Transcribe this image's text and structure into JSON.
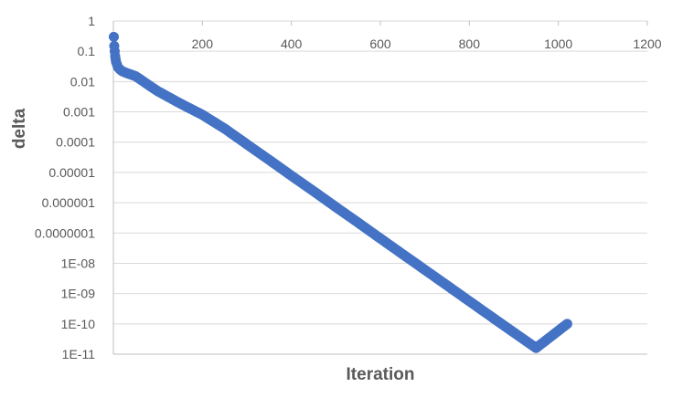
{
  "chart_data": {
    "type": "scatter",
    "title": "",
    "xlabel": "Iteration",
    "ylabel": "delta",
    "x_ticks": [
      "200",
      "400",
      "600",
      "800",
      "1000",
      "1200"
    ],
    "x_tick_values": [
      200,
      400,
      600,
      800,
      1000,
      1200
    ],
    "xlim": [
      0,
      1200
    ],
    "y_scale": "log",
    "ylim": [
      1e-11,
      1
    ],
    "y_ticks": [
      "1",
      "0.1",
      "0.01",
      "0.001",
      "0.0001",
      "0.00001",
      "0.000001",
      "0.0000001",
      "1E-08",
      "1E-09",
      "1E-10",
      "1E-11"
    ],
    "y_tick_values": [
      1,
      0.1,
      0.01,
      0.001,
      0.0001,
      1e-05,
      1e-06,
      1e-07,
      1e-08,
      1e-09,
      1e-10,
      1e-11
    ],
    "grid": true,
    "legend": "none",
    "series": [
      {
        "color": "#4472c4",
        "points": [
          [
            1,
            0.3
          ],
          [
            2,
            0.15
          ],
          [
            3,
            0.1
          ],
          [
            4,
            0.07
          ],
          [
            5,
            0.055
          ],
          [
            6,
            0.045
          ],
          [
            8,
            0.037
          ],
          [
            10,
            0.03
          ],
          [
            15,
            0.025
          ],
          [
            20,
            0.022
          ],
          [
            30,
            0.019
          ],
          [
            40,
            0.017
          ],
          [
            50,
            0.015
          ],
          [
            60,
            0.012
          ],
          [
            80,
            0.0075
          ],
          [
            100,
            0.0048
          ],
          [
            150,
            0.0019
          ],
          [
            200,
            0.0008
          ],
          [
            250,
            0.00028
          ],
          [
            300,
            8.5e-05
          ],
          [
            350,
            2.6e-05
          ],
          [
            400,
            7.8e-06
          ],
          [
            450,
            2.4e-06
          ],
          [
            500,
            7.2e-07
          ],
          [
            550,
            2.2e-07
          ],
          [
            600,
            6.6e-08
          ],
          [
            650,
            2e-08
          ],
          [
            700,
            6.1e-09
          ],
          [
            750,
            1.85e-09
          ],
          [
            800,
            5.6e-10
          ],
          [
            850,
            1.7e-10
          ],
          [
            900,
            5.2e-11
          ],
          [
            950,
            1.6e-11
          ],
          [
            1020,
            1e-10
          ]
        ]
      }
    ]
  }
}
